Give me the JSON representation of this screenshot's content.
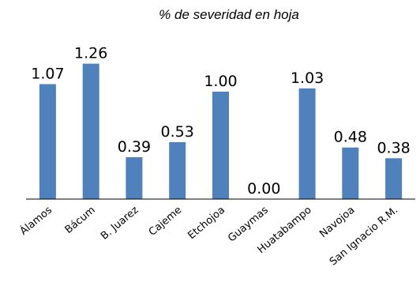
{
  "chart_data": {
    "type": "bar",
    "title": "% de severidad en hoja",
    "categories": [
      "Álamos",
      "Bácum",
      "B. Juarez",
      "Cajeme",
      "Etchojoa",
      "Guaymas",
      "Huatabampo",
      "Navojoa",
      "San Ignacio R.M."
    ],
    "values": [
      1.07,
      1.26,
      0.39,
      0.53,
      1.0,
      0.0,
      1.03,
      0.48,
      0.38
    ],
    "data_labels": [
      "1.07",
      "1.26",
      "0.39",
      "0.53",
      "1.00",
      "0.00",
      "1.03",
      "0.48",
      "0.38"
    ],
    "xlabel": "",
    "ylabel": "",
    "ylim": [
      0,
      1.4
    ],
    "grid": false,
    "legend": "none",
    "bar_color": "#4f81bd"
  }
}
